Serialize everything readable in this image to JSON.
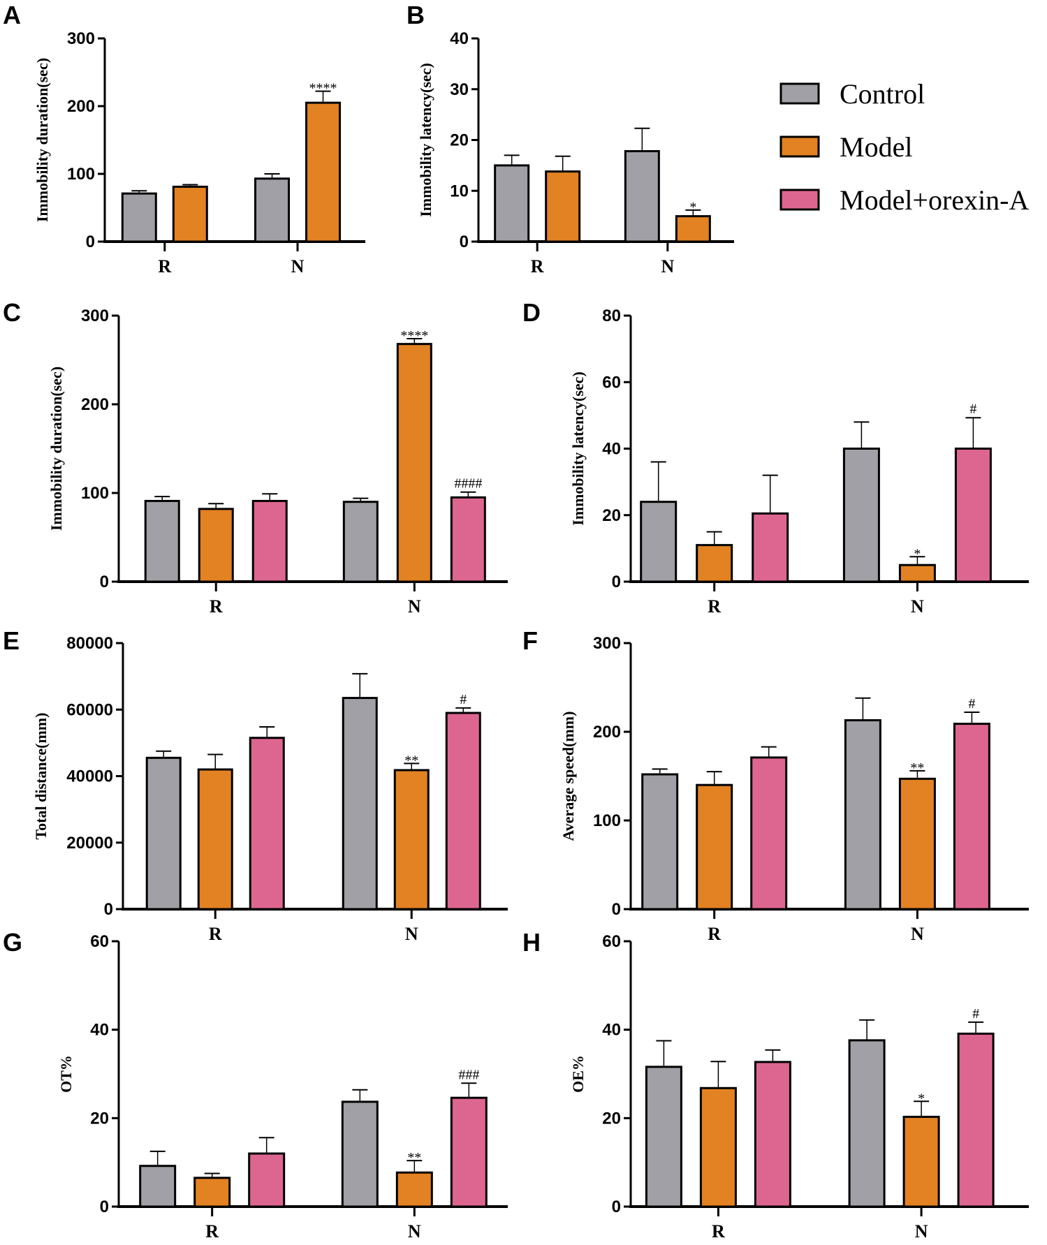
{
  "colors": {
    "Control": "#a0a0a6",
    "Model": "#e28222",
    "Model+orexin-A": "#dd6690"
  },
  "legend": [
    "Control",
    "Model",
    "Model+orexin-A"
  ],
  "chart_data": [
    {
      "panel": "A",
      "type": "bar",
      "ylabel": "Immobility duration(sec)",
      "ylim": [
        0,
        300
      ],
      "yticks": [
        0,
        100,
        200,
        300
      ],
      "categories": [
        "R",
        "N"
      ],
      "series": [
        {
          "name": "Control",
          "values": [
            71,
            93
          ],
          "errors": [
            4,
            7
          ]
        },
        {
          "name": "Model",
          "values": [
            81,
            205
          ],
          "errors": [
            3,
            17
          ]
        }
      ],
      "annotations": [
        {
          "series": "Model",
          "category": "N",
          "text": "****"
        }
      ]
    },
    {
      "panel": "B",
      "type": "bar",
      "ylabel": "Immobility latency(sec)",
      "ylim": [
        0,
        40
      ],
      "yticks": [
        0,
        10,
        20,
        30,
        40
      ],
      "categories": [
        "R",
        "N"
      ],
      "series": [
        {
          "name": "Control",
          "values": [
            15,
            17.8
          ],
          "errors": [
            2,
            4.5
          ]
        },
        {
          "name": "Model",
          "values": [
            13.8,
            5
          ],
          "errors": [
            3,
            1.2
          ]
        }
      ],
      "annotations": [
        {
          "series": "Model",
          "category": "N",
          "text": "*"
        }
      ]
    },
    {
      "panel": "C",
      "type": "bar",
      "ylabel": "Immobility duration(sec)",
      "ylim": [
        0,
        300
      ],
      "yticks": [
        0,
        100,
        200,
        300
      ],
      "categories": [
        "R",
        "N"
      ],
      "series": [
        {
          "name": "Control",
          "values": [
            91,
            90
          ],
          "errors": [
            5,
            4
          ]
        },
        {
          "name": "Model",
          "values": [
            82,
            268
          ],
          "errors": [
            6,
            6
          ]
        },
        {
          "name": "Model+orexin-A",
          "values": [
            91,
            95
          ],
          "errors": [
            8,
            6
          ]
        }
      ],
      "annotations": [
        {
          "series": "Model",
          "category": "N",
          "text": "****"
        },
        {
          "series": "Model+orexin-A",
          "category": "N",
          "text": "####"
        }
      ]
    },
    {
      "panel": "D",
      "type": "bar",
      "ylabel": "Immobility latency(sec)",
      "ylim": [
        0,
        80
      ],
      "yticks": [
        0,
        20,
        40,
        60,
        80
      ],
      "categories": [
        "R",
        "N"
      ],
      "series": [
        {
          "name": "Control",
          "values": [
            24,
            40
          ],
          "errors": [
            12,
            8
          ]
        },
        {
          "name": "Model",
          "values": [
            11,
            5
          ],
          "errors": [
            4,
            2.5
          ]
        },
        {
          "name": "Model+orexin-A",
          "values": [
            20.5,
            40
          ],
          "errors": [
            11.5,
            9.3
          ]
        }
      ],
      "annotations": [
        {
          "series": "Model",
          "category": "N",
          "text": "*"
        },
        {
          "series": "Model+orexin-A",
          "category": "N",
          "text": "#"
        }
      ]
    },
    {
      "panel": "E",
      "type": "bar",
      "ylabel": "Total distance(mm)",
      "ylim": [
        0,
        80000
      ],
      "yticks": [
        0,
        20000,
        40000,
        60000,
        80000
      ],
      "categories": [
        "R",
        "N"
      ],
      "series": [
        {
          "name": "Control",
          "values": [
            45500,
            63500
          ],
          "errors": [
            2000,
            7300
          ]
        },
        {
          "name": "Model",
          "values": [
            42000,
            41800
          ],
          "errors": [
            4500,
            2000
          ]
        },
        {
          "name": "Model+orexin-A",
          "values": [
            51500,
            59000
          ],
          "errors": [
            3300,
            1500
          ]
        }
      ],
      "annotations": [
        {
          "series": "Model",
          "category": "N",
          "text": "**"
        },
        {
          "series": "Model+orexin-A",
          "category": "N",
          "text": "#"
        }
      ]
    },
    {
      "panel": "F",
      "type": "bar",
      "ylabel": "Average speed(mm)",
      "ylim": [
        0,
        300
      ],
      "yticks": [
        0,
        100,
        200,
        300
      ],
      "categories": [
        "R",
        "N"
      ],
      "series": [
        {
          "name": "Control",
          "values": [
            152,
            213
          ],
          "errors": [
            6,
            25
          ]
        },
        {
          "name": "Model",
          "values": [
            140,
            147
          ],
          "errors": [
            15,
            9
          ]
        },
        {
          "name": "Model+orexin-A",
          "values": [
            171,
            209
          ],
          "errors": [
            12,
            13
          ]
        }
      ],
      "annotations": [
        {
          "series": "Model",
          "category": "N",
          "text": "**"
        },
        {
          "series": "Model+orexin-A",
          "category": "N",
          "text": "#"
        }
      ]
    },
    {
      "panel": "G",
      "type": "bar",
      "ylabel": "OT%",
      "ylim": [
        0,
        60
      ],
      "yticks": [
        0,
        20,
        40,
        60
      ],
      "categories": [
        "R",
        "N"
      ],
      "series": [
        {
          "name": "Control",
          "values": [
            9.2,
            23.7
          ],
          "errors": [
            3.3,
            2.7
          ]
        },
        {
          "name": "Model",
          "values": [
            6.5,
            7.7
          ],
          "errors": [
            1,
            2.7
          ]
        },
        {
          "name": "Model+orexin-A",
          "values": [
            12,
            24.6
          ],
          "errors": [
            3.6,
            3.3
          ]
        }
      ],
      "annotations": [
        {
          "series": "Model",
          "category": "N",
          "text": "**"
        },
        {
          "series": "Model+orexin-A",
          "category": "N",
          "text": "###"
        }
      ]
    },
    {
      "panel": "H",
      "type": "bar",
      "ylabel": "OE%",
      "ylim": [
        0,
        60
      ],
      "yticks": [
        0,
        20,
        40,
        60
      ],
      "categories": [
        "R",
        "N"
      ],
      "series": [
        {
          "name": "Control",
          "values": [
            31.6,
            37.6
          ],
          "errors": [
            5.9,
            4.6
          ]
        },
        {
          "name": "Model",
          "values": [
            26.8,
            20.3
          ],
          "errors": [
            6,
            3.5
          ]
        },
        {
          "name": "Model+orexin-A",
          "values": [
            32.7,
            39.1
          ],
          "errors": [
            2.7,
            2.6
          ]
        }
      ],
      "annotations": [
        {
          "series": "Model",
          "category": "N",
          "text": "*"
        },
        {
          "series": "Model+orexin-A",
          "category": "N",
          "text": "#"
        }
      ]
    }
  ]
}
